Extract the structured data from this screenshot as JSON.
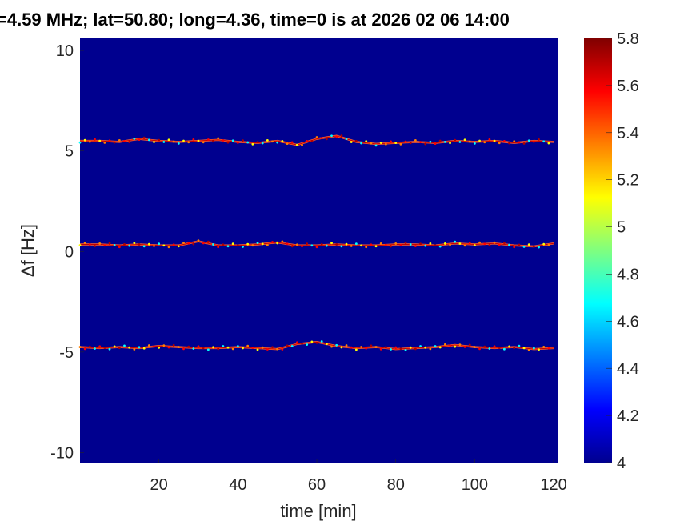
{
  "chart_data": {
    "type": "heatmap",
    "title": "=4.59 MHz;  lat=50.80; long=4.36, time=0 is at 2026 02 06 14:00",
    "xlabel": "time [min]",
    "ylabel": "Δf [Hz]",
    "xlim": [
      0,
      121
    ],
    "ylim": [
      -10.5,
      10.6
    ],
    "xticks": [
      20,
      40,
      60,
      80,
      100,
      120
    ],
    "xtick_labels": [
      "20",
      "40",
      "60",
      "80",
      "100",
      "120"
    ],
    "yticks": [
      10,
      5,
      0,
      -5,
      -10
    ],
    "ytick_labels": [
      "10",
      "5",
      "0",
      "-5",
      "-10"
    ],
    "colormap": "jet",
    "background_value": 4,
    "colorbar": {
      "clim": [
        4,
        5.8
      ],
      "ticks": [
        4,
        4.2,
        4.4,
        4.6,
        4.8,
        5,
        5.2,
        5.4,
        5.6,
        5.8
      ],
      "tick_labels": [
        "4",
        "4.2",
        "4.4",
        "4.6",
        "4.8",
        "5",
        "5.2",
        "5.4",
        "5.6",
        "5.8"
      ]
    },
    "x": [
      0,
      5,
      10,
      15,
      20,
      25,
      30,
      35,
      40,
      45,
      50,
      55,
      60,
      65,
      70,
      75,
      80,
      85,
      90,
      95,
      100,
      105,
      110,
      115,
      120
    ],
    "series": [
      {
        "values": [
          5.5,
          5.5,
          5.45,
          5.6,
          5.5,
          5.45,
          5.5,
          5.55,
          5.45,
          5.4,
          5.5,
          5.3,
          5.6,
          5.75,
          5.45,
          5.35,
          5.4,
          5.45,
          5.4,
          5.5,
          5.45,
          5.5,
          5.4,
          5.5,
          5.45
        ]
      },
      {
        "values": [
          0.35,
          0.35,
          0.3,
          0.35,
          0.3,
          0.3,
          0.5,
          0.3,
          0.3,
          0.35,
          0.45,
          0.3,
          0.3,
          0.35,
          0.3,
          0.3,
          0.35,
          0.35,
          0.3,
          0.4,
          0.35,
          0.4,
          0.3,
          0.25,
          0.4
        ]
      },
      {
        "values": [
          -4.75,
          -4.8,
          -4.75,
          -4.8,
          -4.7,
          -4.75,
          -4.8,
          -4.8,
          -4.75,
          -4.8,
          -4.85,
          -4.6,
          -4.5,
          -4.7,
          -4.8,
          -4.75,
          -4.85,
          -4.8,
          -4.75,
          -4.65,
          -4.75,
          -4.8,
          -4.75,
          -4.85,
          -4.8
        ]
      }
    ]
  }
}
